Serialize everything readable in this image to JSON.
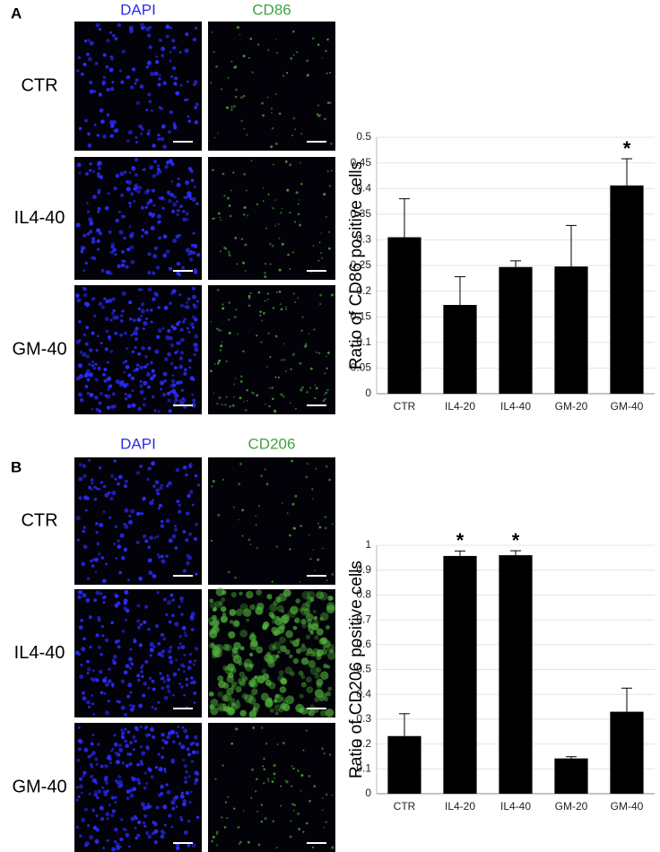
{
  "panels": [
    {
      "label": "A",
      "columns": [
        "DAPI",
        "CD86"
      ],
      "rows": [
        "CTR",
        "IL4-40",
        "GM-40"
      ]
    },
    {
      "label": "B",
      "columns": [
        "DAPI",
        "CD206"
      ],
      "rows": [
        "CTR",
        "IL4-40",
        "GM-40"
      ]
    }
  ],
  "chart_data": [
    {
      "type": "bar",
      "y_label": "Ratio of CD86 positive cells",
      "categories": [
        "CTR",
        "IL4-20",
        "IL4-40",
        "GM-20",
        "GM-40"
      ],
      "values": [
        0.305,
        0.173,
        0.247,
        0.248,
        0.406
      ],
      "errors": [
        0.075,
        0.055,
        0.012,
        0.08,
        0.052
      ],
      "annotations": [
        null,
        null,
        null,
        null,
        "*"
      ],
      "color": "#000000",
      "ylim": [
        0,
        0.5
      ],
      "yticks": [
        0,
        0.05,
        0.1,
        0.15,
        0.2,
        0.25,
        0.3,
        0.35,
        0.4,
        0.45,
        0.5
      ],
      "grid": true
    },
    {
      "type": "bar",
      "y_label": "Ratio of CD206 positive cells",
      "categories": [
        "CTR",
        "IL4-20",
        "IL4-40",
        "GM-20",
        "GM-40"
      ],
      "values": [
        0.232,
        0.957,
        0.96,
        0.142,
        0.33
      ],
      "errors": [
        0.09,
        0.02,
        0.018,
        0.007,
        0.095
      ],
      "annotations": [
        null,
        "*",
        "*",
        null,
        null
      ],
      "color": "#000000",
      "ylim": [
        0,
        1
      ],
      "yticks": [
        0,
        0.1,
        0.2,
        0.3,
        0.4,
        0.5,
        0.6,
        0.7,
        0.8,
        0.9,
        1
      ],
      "grid": true
    }
  ]
}
